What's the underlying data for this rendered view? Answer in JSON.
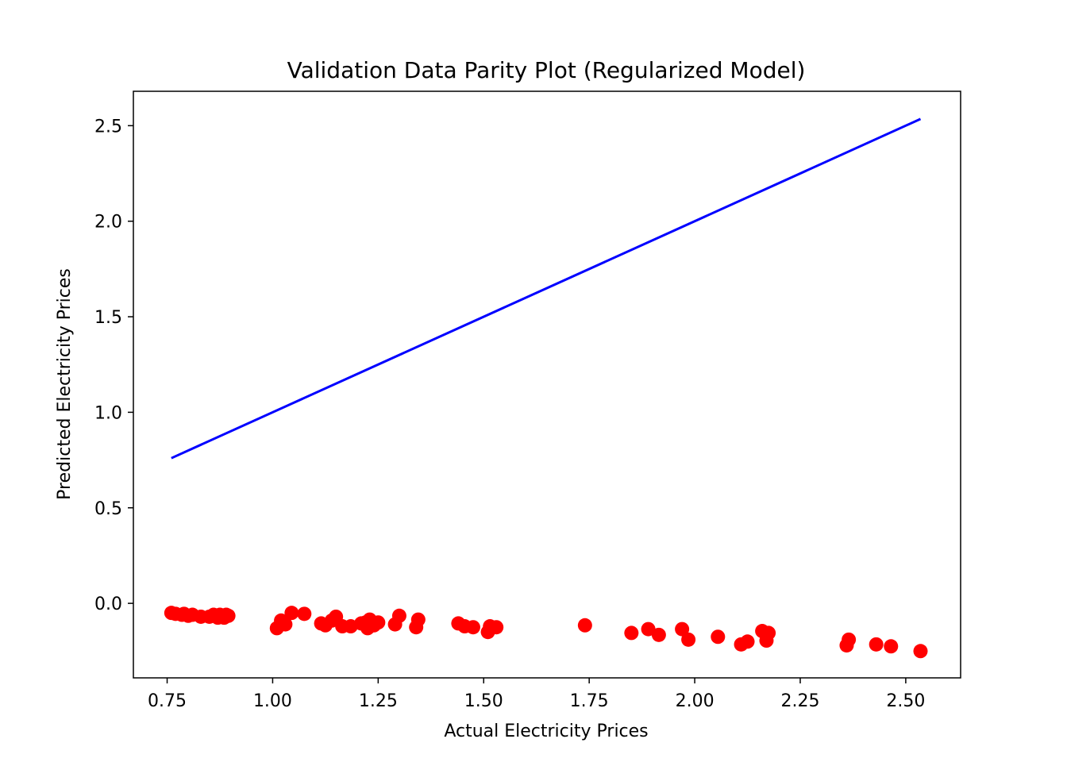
{
  "chart_data": {
    "type": "scatter",
    "title": "Validation Data Parity Plot (Regularized Model)",
    "xlabel": "Actual Electricity Prices",
    "ylabel": "Predicted Electricity Prices",
    "xlim": [
      0.67,
      2.63
    ],
    "ylim": [
      -0.39,
      2.68
    ],
    "xticks": [
      0.75,
      1.0,
      1.25,
      1.5,
      1.75,
      2.0,
      2.25,
      2.5
    ],
    "xtick_labels": [
      "0.75",
      "1.00",
      "1.25",
      "1.50",
      "1.75",
      "2.00",
      "2.25",
      "2.50"
    ],
    "yticks": [
      0.0,
      0.5,
      1.0,
      1.5,
      2.0,
      2.5
    ],
    "ytick_labels": [
      "0.0",
      "0.5",
      "1.0",
      "1.5",
      "2.0",
      "2.5"
    ],
    "grid": false,
    "series": [
      {
        "kind": "scatter",
        "color": "#ff0000",
        "points": [
          [
            0.76,
            -0.05
          ],
          [
            0.77,
            -0.055
          ],
          [
            0.785,
            -0.06
          ],
          [
            0.79,
            -0.055
          ],
          [
            0.8,
            -0.065
          ],
          [
            0.81,
            -0.06
          ],
          [
            0.83,
            -0.07
          ],
          [
            0.85,
            -0.07
          ],
          [
            0.86,
            -0.06
          ],
          [
            0.87,
            -0.075
          ],
          [
            0.875,
            -0.06
          ],
          [
            0.88,
            -0.065
          ],
          [
            0.885,
            -0.075
          ],
          [
            0.89,
            -0.06
          ],
          [
            0.895,
            -0.065
          ],
          [
            1.01,
            -0.13
          ],
          [
            1.02,
            -0.09
          ],
          [
            1.03,
            -0.11
          ],
          [
            1.045,
            -0.05
          ],
          [
            1.075,
            -0.055
          ],
          [
            1.115,
            -0.105
          ],
          [
            1.125,
            -0.115
          ],
          [
            1.14,
            -0.09
          ],
          [
            1.15,
            -0.07
          ],
          [
            1.165,
            -0.12
          ],
          [
            1.185,
            -0.12
          ],
          [
            1.21,
            -0.105
          ],
          [
            1.22,
            -0.1
          ],
          [
            1.225,
            -0.13
          ],
          [
            1.23,
            -0.085
          ],
          [
            1.24,
            -0.115
          ],
          [
            1.25,
            -0.1
          ],
          [
            1.29,
            -0.11
          ],
          [
            1.3,
            -0.065
          ],
          [
            1.34,
            -0.125
          ],
          [
            1.345,
            -0.085
          ],
          [
            1.44,
            -0.105
          ],
          [
            1.455,
            -0.12
          ],
          [
            1.475,
            -0.125
          ],
          [
            1.51,
            -0.15
          ],
          [
            1.515,
            -0.12
          ],
          [
            1.53,
            -0.125
          ],
          [
            1.74,
            -0.115
          ],
          [
            1.85,
            -0.155
          ],
          [
            1.89,
            -0.135
          ],
          [
            1.915,
            -0.165
          ],
          [
            1.97,
            -0.135
          ],
          [
            1.985,
            -0.19
          ],
          [
            2.055,
            -0.175
          ],
          [
            2.11,
            -0.215
          ],
          [
            2.125,
            -0.2
          ],
          [
            2.16,
            -0.145
          ],
          [
            2.17,
            -0.195
          ],
          [
            2.175,
            -0.155
          ],
          [
            2.36,
            -0.22
          ],
          [
            2.365,
            -0.19
          ],
          [
            2.43,
            -0.215
          ],
          [
            2.465,
            -0.225
          ],
          [
            2.535,
            -0.25
          ]
        ]
      },
      {
        "kind": "line",
        "color": "#0000ff",
        "points": [
          [
            0.76,
            0.76
          ],
          [
            2.535,
            2.535
          ]
        ]
      }
    ]
  }
}
